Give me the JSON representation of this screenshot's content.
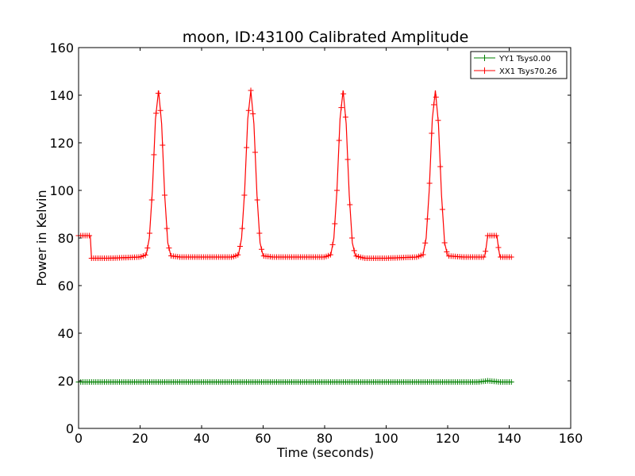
{
  "chart_data": {
    "type": "line",
    "title": "moon, ID:43100 Calibrated Amplitude",
    "xlabel": "Time (seconds)",
    "ylabel": "Power in Kelvin",
    "xlim": [
      0,
      160
    ],
    "ylim": [
      0,
      160
    ],
    "xticks": [
      "0",
      "20",
      "40",
      "60",
      "80",
      "100",
      "120",
      "140",
      "160"
    ],
    "yticks": [
      "0",
      "20",
      "40",
      "60",
      "80",
      "100",
      "120",
      "140",
      "160"
    ],
    "grid": false,
    "legend_position": "top-right",
    "marker": "+",
    "series": [
      {
        "name": "YY1 Tsys0.00",
        "color": "#008000",
        "x": [
          0,
          10,
          20,
          30,
          40,
          50,
          60,
          70,
          80,
          90,
          100,
          110,
          120,
          130,
          133,
          137,
          140,
          141
        ],
        "y": [
          19.5,
          19.5,
          19.5,
          19.5,
          19.5,
          19.5,
          19.5,
          19.5,
          19.5,
          19.5,
          19.5,
          19.5,
          19.5,
          19.5,
          20,
          19.5,
          19.5,
          19.5
        ]
      },
      {
        "name": "XX1 Tsys70.26",
        "color": "#ff0000",
        "x": [
          0,
          3.8,
          4.2,
          10,
          20,
          22,
          23,
          24,
          25,
          26,
          27,
          28,
          29,
          30,
          33,
          40,
          50,
          52,
          53,
          54,
          55,
          56,
          57,
          58,
          59,
          60,
          63,
          70,
          80,
          82,
          83,
          84,
          85,
          86,
          87,
          88,
          89,
          90,
          93,
          100,
          110,
          112,
          113,
          114,
          115,
          116,
          117,
          118,
          119,
          120,
          125,
          132,
          132.5,
          133,
          135,
          136,
          136.5,
          137,
          141
        ],
        "y": [
          81,
          81,
          71.5,
          71.5,
          72,
          73,
          80,
          100,
          130,
          142,
          128,
          98,
          78,
          72.5,
          72,
          72,
          72,
          73,
          80,
          100,
          130,
          142,
          128,
          98,
          78,
          72.5,
          72,
          72,
          72,
          73,
          80,
          100,
          130,
          142,
          128,
          98,
          78,
          72.5,
          71.5,
          71.5,
          72,
          73,
          80,
          100,
          130,
          142,
          128,
          98,
          78,
          72.5,
          72,
          72,
          76,
          81,
          81,
          81,
          76,
          72,
          72
        ]
      }
    ]
  }
}
